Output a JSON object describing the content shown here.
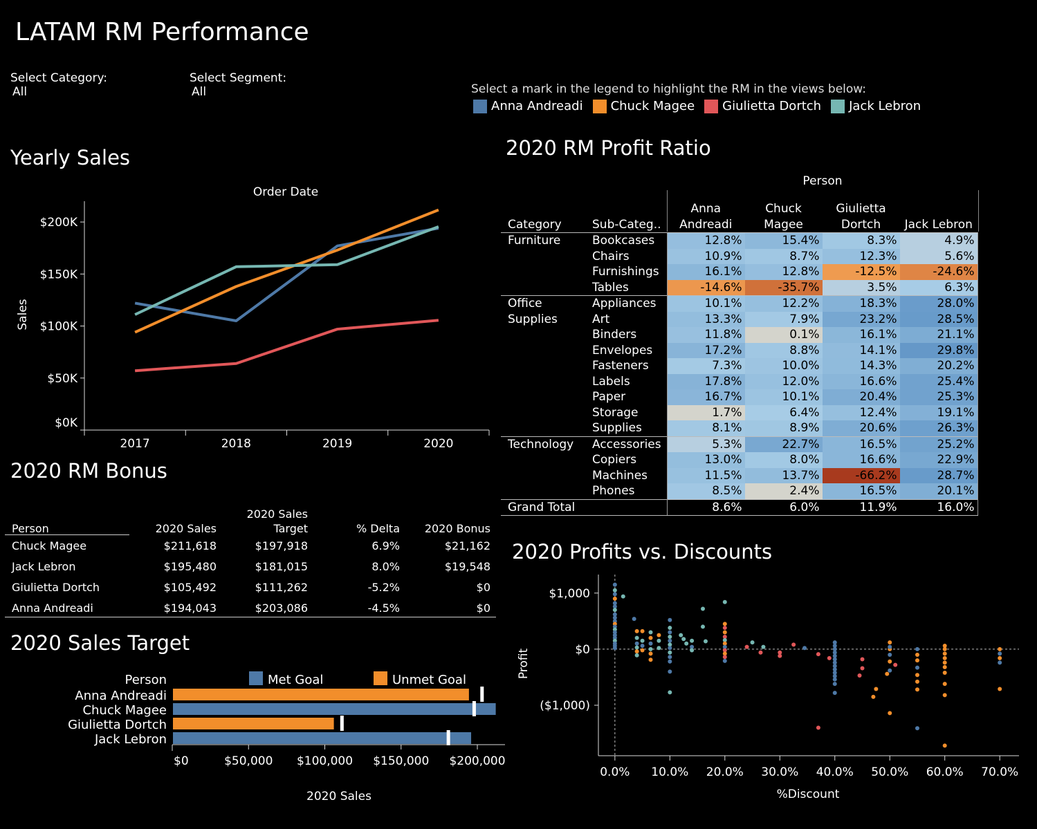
{
  "header": {
    "title": "LATAM RM Performance",
    "filters": [
      {
        "label": "Select Category:",
        "value": "All"
      },
      {
        "label": "Select Segment:",
        "value": "All"
      }
    ],
    "legend_hint": "Select a mark in the legend to highlight the RM in the views below:",
    "legend": [
      {
        "name": "Anna Andreadi",
        "color": "#4e79a7"
      },
      {
        "name": "Chuck Magee",
        "color": "#f28e2b"
      },
      {
        "name": "Giulietta Dortch",
        "color": "#e15759"
      },
      {
        "name": "Jack Lebron",
        "color": "#76b7b2"
      }
    ]
  },
  "yearly_sales": {
    "title": "Yearly Sales",
    "chart_data": {
      "type": "line",
      "xlabel": "Order Date",
      "ylabel": "Sales",
      "categories": [
        "2017",
        "2018",
        "2019",
        "2020"
      ],
      "y_ticks": [
        "$0K",
        "$50K",
        "$100K",
        "$150K",
        "$200K"
      ],
      "ylim": [
        0,
        220000
      ],
      "series": [
        {
          "name": "Anna Andreadi",
          "color": "#4e79a7",
          "values": [
            122000,
            105000,
            177000,
            194043
          ]
        },
        {
          "name": "Chuck Magee",
          "color": "#f28e2b",
          "values": [
            94000,
            138000,
            173000,
            211618
          ]
        },
        {
          "name": "Giulietta Dortch",
          "color": "#e15759",
          "values": [
            57000,
            64000,
            97000,
            105492
          ]
        },
        {
          "name": "Jack Lebron",
          "color": "#76b7b2",
          "values": [
            111000,
            157000,
            159000,
            195480
          ]
        }
      ]
    }
  },
  "profit_ratio": {
    "title": "2020 RM Profit Ratio",
    "chart_data": {
      "type": "heatmap",
      "column_group_header": "Person",
      "row_headers": [
        "Category",
        "Sub-Categ.."
      ],
      "columns": [
        [
          "Anna",
          "Andreadi"
        ],
        [
          "Chuck",
          "Magee"
        ],
        [
          "Giulietta",
          "Dortch"
        ],
        [
          "",
          "Jack Lebron"
        ]
      ],
      "groups": [
        {
          "category": [
            "Furniture"
          ],
          "rows": [
            {
              "sub": "Bookcases",
              "values": [
                "12.8%",
                "15.4%",
                "8.3%",
                "4.9%"
              ]
            },
            {
              "sub": "Chairs",
              "values": [
                "10.9%",
                "8.7%",
                "12.3%",
                "5.6%"
              ]
            },
            {
              "sub": "Furnishings",
              "values": [
                "16.1%",
                "12.8%",
                "-12.5%",
                "-24.6%"
              ]
            },
            {
              "sub": "Tables",
              "values": [
                "-14.6%",
                "-35.7%",
                "3.5%",
                "6.3%"
              ]
            }
          ]
        },
        {
          "category": [
            "Office",
            "Supplies"
          ],
          "rows": [
            {
              "sub": "Appliances",
              "values": [
                "10.1%",
                "12.2%",
                "18.3%",
                "28.0%"
              ]
            },
            {
              "sub": "Art",
              "values": [
                "13.3%",
                "7.9%",
                "23.2%",
                "28.5%"
              ]
            },
            {
              "sub": "Binders",
              "values": [
                "11.8%",
                "0.1%",
                "16.1%",
                "21.1%"
              ]
            },
            {
              "sub": "Envelopes",
              "values": [
                "17.2%",
                "8.8%",
                "14.1%",
                "29.8%"
              ]
            },
            {
              "sub": "Fasteners",
              "values": [
                "7.3%",
                "10.0%",
                "14.3%",
                "20.2%"
              ]
            },
            {
              "sub": "Labels",
              "values": [
                "17.8%",
                "12.0%",
                "16.6%",
                "25.4%"
              ]
            },
            {
              "sub": "Paper",
              "values": [
                "16.7%",
                "10.1%",
                "20.4%",
                "25.3%"
              ]
            },
            {
              "sub": "Storage",
              "values": [
                "1.7%",
                "6.4%",
                "12.4%",
                "19.1%"
              ]
            },
            {
              "sub": "Supplies",
              "values": [
                "8.1%",
                "8.9%",
                "20.6%",
                "26.3%"
              ]
            }
          ]
        },
        {
          "category": [
            "Technology"
          ],
          "rows": [
            {
              "sub": "Accessories",
              "values": [
                "5.3%",
                "22.7%",
                "16.5%",
                "25.2%"
              ]
            },
            {
              "sub": "Copiers",
              "values": [
                "13.0%",
                "8.0%",
                "16.6%",
                "22.9%"
              ]
            },
            {
              "sub": "Machines",
              "values": [
                "11.5%",
                "13.7%",
                "-66.2%",
                "28.7%"
              ]
            },
            {
              "sub": "Phones",
              "values": [
                "8.5%",
                "2.4%",
                "16.5%",
                "20.1%"
              ]
            }
          ]
        }
      ],
      "grand_total": {
        "label": "Grand Total",
        "values": [
          "8.6%",
          "6.0%",
          "11.9%",
          "16.0%"
        ]
      }
    }
  },
  "bonus": {
    "title": "2020 RM Bonus",
    "chart_data": {
      "type": "table",
      "headers": {
        "person": "Person",
        "sales": "2020 Sales",
        "target1": "2020 Sales",
        "target2": "Target",
        "delta": "% Delta",
        "bonus": "2020 Bonus"
      },
      "rows": [
        {
          "person": "Chuck Magee",
          "sales": "$211,618",
          "target": "$197,918",
          "delta": "6.9%",
          "bonus": "$21,162"
        },
        {
          "person": "Jack Lebron",
          "sales": "$195,480",
          "target": "$181,015",
          "delta": "8.0%",
          "bonus": "$19,548"
        },
        {
          "person": "Giulietta Dortch",
          "sales": "$105,492",
          "target": "$111,262",
          "delta": "-5.2%",
          "bonus": "$0"
        },
        {
          "person": "Anna Andreadi",
          "sales": "$194,043",
          "target": "$203,086",
          "delta": "-4.5%",
          "bonus": "$0"
        }
      ]
    }
  },
  "sales_target": {
    "title": "2020 Sales Target",
    "chart_data": {
      "type": "bar",
      "person_header": "Person",
      "xlabel": "2020 Sales",
      "legend": [
        {
          "name": "Met Goal",
          "color": "#4e79a7"
        },
        {
          "name": "Unmet Goal",
          "color": "#f28e2b"
        }
      ],
      "x_ticks": [
        "$0",
        "$50,000",
        "$100,000",
        "$150,000",
        "$200,000"
      ],
      "xlim": [
        0,
        220000
      ],
      "categories": [
        "Anna Andreadi",
        "Chuck Magee",
        "Giulietta Dortch",
        "Jack Lebron"
      ],
      "values": [
        194043,
        211618,
        105492,
        195480
      ],
      "targets": [
        203086,
        197918,
        111262,
        181015
      ],
      "met": [
        false,
        true,
        false,
        true
      ]
    }
  },
  "profits_discounts": {
    "title": "2020 Profits vs. Discounts",
    "chart_data": {
      "type": "scatter",
      "xlabel": "%Discount",
      "ylabel": "Profit",
      "x_ticks": [
        "0.0%",
        "10.0%",
        "20.0%",
        "30.0%",
        "40.0%",
        "50.0%",
        "60.0%",
        "70.0%"
      ],
      "y_ticks": [
        "$1,000",
        "$0",
        "($1,000)"
      ],
      "xlim": [
        -0.03,
        0.735
      ],
      "ylim": [
        -1900,
        1330
      ],
      "points": [
        [
          0,
          1150,
          "a"
        ],
        [
          0,
          1050,
          "j"
        ],
        [
          0,
          980,
          "a"
        ],
        [
          0,
          900,
          "o"
        ],
        [
          0,
          820,
          "a"
        ],
        [
          0,
          760,
          "a"
        ],
        [
          0,
          700,
          "j"
        ],
        [
          0,
          620,
          "a"
        ],
        [
          0,
          560,
          "a"
        ],
        [
          0,
          500,
          "a"
        ],
        [
          0,
          450,
          "o"
        ],
        [
          0,
          400,
          "a"
        ],
        [
          0,
          350,
          "j"
        ],
        [
          0,
          300,
          "a"
        ],
        [
          0,
          250,
          "a"
        ],
        [
          0,
          200,
          "a"
        ],
        [
          0,
          150,
          "j"
        ],
        [
          0,
          100,
          "a"
        ],
        [
          0,
          60,
          "a"
        ],
        [
          0,
          20,
          "a"
        ],
        [
          0.015,
          940,
          "j"
        ],
        [
          0.035,
          540,
          "a"
        ],
        [
          0.04,
          320,
          "o"
        ],
        [
          0.04,
          200,
          "j"
        ],
        [
          0.04,
          100,
          "a"
        ],
        [
          0.04,
          30,
          "j"
        ],
        [
          0.04,
          -40,
          "o"
        ],
        [
          0.04,
          -110,
          "j"
        ],
        [
          0.05,
          320,
          "o"
        ],
        [
          0.05,
          150,
          "j"
        ],
        [
          0.05,
          60,
          "a"
        ],
        [
          0.05,
          -20,
          "o"
        ],
        [
          0.065,
          300,
          "j"
        ],
        [
          0.065,
          200,
          "o"
        ],
        [
          0.065,
          100,
          "a"
        ],
        [
          0.065,
          0,
          "j"
        ],
        [
          0.065,
          -80,
          "o"
        ],
        [
          0.065,
          -190,
          "o"
        ],
        [
          0.08,
          250,
          "o"
        ],
        [
          0.08,
          150,
          "j"
        ],
        [
          0.08,
          20,
          "j"
        ],
        [
          0.1,
          520,
          "a"
        ],
        [
          0.1,
          380,
          "j"
        ],
        [
          0.1,
          300,
          "a"
        ],
        [
          0.1,
          220,
          "j"
        ],
        [
          0.1,
          150,
          "a"
        ],
        [
          0.1,
          80,
          "j"
        ],
        [
          0.1,
          20,
          "a"
        ],
        [
          0.1,
          -60,
          "j"
        ],
        [
          0.1,
          -140,
          "a"
        ],
        [
          0.1,
          -220,
          "a"
        ],
        [
          0.1,
          -400,
          "a"
        ],
        [
          0.1,
          -770,
          "j"
        ],
        [
          0.12,
          250,
          "j"
        ],
        [
          0.125,
          180,
          "j"
        ],
        [
          0.13,
          100,
          "j"
        ],
        [
          0.14,
          150,
          "j"
        ],
        [
          0.14,
          40,
          "a"
        ],
        [
          0.14,
          -20,
          "j"
        ],
        [
          0.16,
          400,
          "j"
        ],
        [
          0.16,
          720,
          "j"
        ],
        [
          0.165,
          140,
          "j"
        ],
        [
          0.2,
          840,
          "j"
        ],
        [
          0.2,
          450,
          "o"
        ],
        [
          0.2,
          380,
          "g"
        ],
        [
          0.2,
          300,
          "o"
        ],
        [
          0.2,
          220,
          "g"
        ],
        [
          0.2,
          160,
          "j"
        ],
        [
          0.2,
          100,
          "o"
        ],
        [
          0.2,
          40,
          "a"
        ],
        [
          0.2,
          -20,
          "g"
        ],
        [
          0.2,
          -80,
          "o"
        ],
        [
          0.2,
          -140,
          "g"
        ],
        [
          0.2,
          -210,
          "a"
        ],
        [
          0.24,
          40,
          "g"
        ],
        [
          0.25,
          120,
          "j"
        ],
        [
          0.265,
          -60,
          "g"
        ],
        [
          0.27,
          40,
          "j"
        ],
        [
          0.3,
          -60,
          "g"
        ],
        [
          0.3,
          -120,
          "g"
        ],
        [
          0.325,
          80,
          "g"
        ],
        [
          0.345,
          20,
          "a"
        ],
        [
          0.37,
          -90,
          "g"
        ],
        [
          0.37,
          -1400,
          "g"
        ],
        [
          0.39,
          -160,
          "g"
        ],
        [
          0.4,
          120,
          "a"
        ],
        [
          0.4,
          60,
          "a"
        ],
        [
          0.4,
          0,
          "a"
        ],
        [
          0.4,
          -60,
          "a"
        ],
        [
          0.4,
          -120,
          "a"
        ],
        [
          0.4,
          -180,
          "a"
        ],
        [
          0.4,
          -240,
          "a"
        ],
        [
          0.4,
          -300,
          "a"
        ],
        [
          0.4,
          -360,
          "a"
        ],
        [
          0.4,
          -420,
          "a"
        ],
        [
          0.4,
          -480,
          "a"
        ],
        [
          0.4,
          -540,
          "a"
        ],
        [
          0.4,
          -620,
          "a"
        ],
        [
          0.4,
          -780,
          "a"
        ],
        [
          0.445,
          -470,
          "g"
        ],
        [
          0.45,
          -180,
          "g"
        ],
        [
          0.45,
          -340,
          "g"
        ],
        [
          0.47,
          -850,
          "o"
        ],
        [
          0.475,
          -710,
          "o"
        ],
        [
          0.495,
          -440,
          "o"
        ],
        [
          0.5,
          0,
          "o"
        ],
        [
          0.5,
          -380,
          "a"
        ],
        [
          0.5,
          -1140,
          "o"
        ],
        [
          0.51,
          -280,
          "g"
        ],
        [
          0.5,
          120,
          "o"
        ],
        [
          0.5,
          40,
          "a"
        ],
        [
          0.5,
          -100,
          "a"
        ],
        [
          0.5,
          -220,
          "o"
        ],
        [
          0.55,
          0,
          "a"
        ],
        [
          0.55,
          -100,
          "o"
        ],
        [
          0.55,
          -200,
          "o"
        ],
        [
          0.55,
          -330,
          "a"
        ],
        [
          0.55,
          -460,
          "o"
        ],
        [
          0.55,
          -580,
          "o"
        ],
        [
          0.55,
          -720,
          "o"
        ],
        [
          0.55,
          -1410,
          "a"
        ],
        [
          0.6,
          0,
          "o"
        ],
        [
          0.6,
          -80,
          "o"
        ],
        [
          0.6,
          -160,
          "o"
        ],
        [
          0.6,
          -240,
          "o"
        ],
        [
          0.6,
          -320,
          "o"
        ],
        [
          0.6,
          -420,
          "o"
        ],
        [
          0.6,
          -620,
          "o"
        ],
        [
          0.6,
          -820,
          "o"
        ],
        [
          0.6,
          -1720,
          "o"
        ],
        [
          0.6,
          60,
          "o"
        ],
        [
          0.7,
          0,
          "o"
        ],
        [
          0.7,
          -80,
          "a"
        ],
        [
          0.7,
          -160,
          "o"
        ],
        [
          0.7,
          -240,
          "a"
        ],
        [
          0.7,
          -710,
          "o"
        ]
      ]
    }
  }
}
